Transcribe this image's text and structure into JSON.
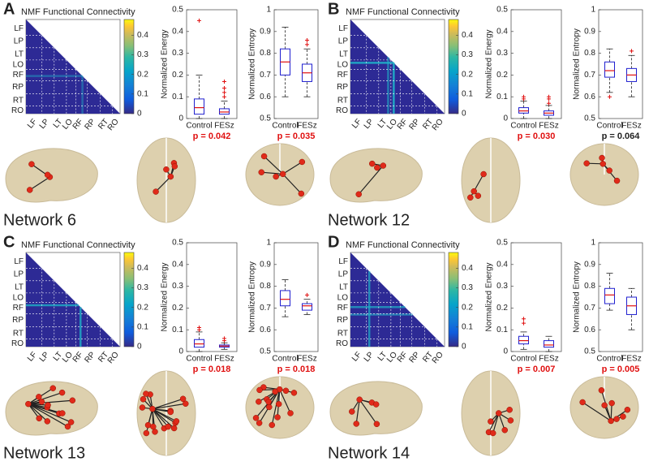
{
  "chart_data": [
    {
      "type": "panel",
      "letter": "A",
      "network": "Network 6",
      "heatmap": {
        "type": "heatmap",
        "title": "NMF Functional Connectivity",
        "regions": [
          "LF",
          "LP",
          "LT",
          "LO",
          "RF",
          "RP",
          "RT",
          "RO"
        ],
        "clim": [
          0,
          0.48
        ],
        "cticks": [
          0,
          0.1,
          0.2,
          0.3,
          0.4
        ]
      },
      "energy": {
        "type": "box",
        "ylabel": "Normalized Energy",
        "categories": [
          "Control",
          "FESz"
        ],
        "ylim": [
          0,
          0.5
        ],
        "yticks": [
          0,
          0.1,
          0.2,
          0.3,
          0.4,
          0.5
        ],
        "boxes": [
          {
            "min": 0,
            "q1": 0.02,
            "median": 0.05,
            "q3": 0.09,
            "max": 0.2,
            "outliers": [
              0.45
            ]
          },
          {
            "min": 0,
            "q1": 0.02,
            "median": 0.03,
            "q3": 0.045,
            "max": 0.08,
            "outliers": [
              0.1,
              0.12,
              0.14,
              0.17
            ]
          }
        ],
        "p_value": "p = 0.042",
        "p_color": "#e01010",
        "color": "#1f1fd0",
        "median_color": "#e01010"
      },
      "entropy": {
        "type": "box",
        "ylabel": "Normalized Entropy",
        "categories": [
          "Control",
          "FESz"
        ],
        "ylim": [
          0.5,
          1
        ],
        "yticks": [
          0.5,
          0.6,
          0.7,
          0.8,
          0.9,
          1
        ],
        "boxes": [
          {
            "min": 0.6,
            "q1": 0.7,
            "median": 0.76,
            "q3": 0.82,
            "max": 0.92,
            "outliers": []
          },
          {
            "min": 0.6,
            "q1": 0.67,
            "median": 0.71,
            "q3": 0.75,
            "max": 0.82,
            "outliers": [
              0.84,
              0.86
            ]
          }
        ],
        "p_value": "p = 0.035",
        "p_color": "#e01010",
        "color": "#1f1fd0",
        "median_color": "#e01010"
      }
    },
    {
      "type": "panel",
      "letter": "B",
      "network": "Network 12",
      "heatmap": {
        "type": "heatmap",
        "title": "NMF Functional Connectivity",
        "regions": [
          "LF",
          "LP",
          "LT",
          "LO",
          "RF",
          "RP",
          "RT",
          "RO"
        ],
        "clim": [
          0,
          0.48
        ],
        "cticks": [
          0,
          0.1,
          0.2,
          0.3,
          0.4
        ]
      },
      "energy": {
        "type": "box",
        "ylabel": "Normalized Energy",
        "categories": [
          "Control",
          "FESz"
        ],
        "ylim": [
          0,
          0.5
        ],
        "yticks": [
          0,
          0.1,
          0.2,
          0.3,
          0.4,
          0.5
        ],
        "boxes": [
          {
            "min": 0,
            "q1": 0.025,
            "median": 0.035,
            "q3": 0.05,
            "max": 0.08,
            "outliers": [
              0.09,
              0.1
            ]
          },
          {
            "min": 0,
            "q1": 0.015,
            "median": 0.025,
            "q3": 0.035,
            "max": 0.06,
            "outliers": [
              0.07,
              0.09,
              0.1
            ]
          }
        ],
        "p_value": "p = 0.030",
        "p_color": "#e01010",
        "color": "#1f1fd0",
        "median_color": "#e01010"
      },
      "entropy": {
        "type": "box",
        "ylabel": "Normalized Entropy",
        "categories": [
          "Control",
          "FESz"
        ],
        "ylim": [
          0.5,
          1
        ],
        "yticks": [
          0.5,
          0.6,
          0.7,
          0.8,
          0.9,
          1
        ],
        "boxes": [
          {
            "min": 0.62,
            "q1": 0.69,
            "median": 0.72,
            "q3": 0.76,
            "max": 0.82,
            "outliers": [
              0.6
            ]
          },
          {
            "min": 0.6,
            "q1": 0.67,
            "median": 0.7,
            "q3": 0.73,
            "max": 0.79,
            "outliers": [
              0.81
            ]
          }
        ],
        "p_value": "p = 0.064",
        "p_color": "#222222",
        "color": "#1f1fd0",
        "median_color": "#e01010"
      }
    },
    {
      "type": "panel",
      "letter": "C",
      "network": "Network 13",
      "heatmap": {
        "type": "heatmap",
        "title": "NMF Functional Connectivity",
        "regions": [
          "LF",
          "LP",
          "LT",
          "LO",
          "RF",
          "RP",
          "RT",
          "RO"
        ],
        "clim": [
          0,
          0.48
        ],
        "cticks": [
          0,
          0.1,
          0.2,
          0.3,
          0.4
        ]
      },
      "energy": {
        "type": "box",
        "ylabel": "Normalized Energy",
        "categories": [
          "Control",
          "FESz"
        ],
        "ylim": [
          0,
          0.5
        ],
        "yticks": [
          0,
          0.1,
          0.2,
          0.3,
          0.4,
          0.5
        ],
        "boxes": [
          {
            "min": 0,
            "q1": 0.02,
            "median": 0.035,
            "q3": 0.055,
            "max": 0.09,
            "outliers": [
              0.1,
              0.11
            ]
          },
          {
            "min": 0.01,
            "q1": 0.02,
            "median": 0.025,
            "q3": 0.03,
            "max": 0.04,
            "outliers": [
              0.05,
              0.06
            ]
          }
        ],
        "p_value": "p = 0.018",
        "p_color": "#e01010",
        "color": "#1f1fd0",
        "median_color": "#e01010"
      },
      "entropy": {
        "type": "box",
        "ylabel": "Normalized Entropy",
        "categories": [
          "Control",
          "FESz"
        ],
        "ylim": [
          0.5,
          1
        ],
        "yticks": [
          0.5,
          0.6,
          0.7,
          0.8,
          0.9,
          1
        ],
        "boxes": [
          {
            "min": 0.66,
            "q1": 0.71,
            "median": 0.74,
            "q3": 0.78,
            "max": 0.83,
            "outliers": []
          },
          {
            "min": 0.67,
            "q1": 0.69,
            "median": 0.71,
            "q3": 0.72,
            "max": 0.74,
            "outliers": [
              0.76
            ]
          }
        ],
        "p_value": "p = 0.018",
        "p_color": "#e01010",
        "color": "#1f1fd0",
        "median_color": "#e01010"
      }
    },
    {
      "type": "panel",
      "letter": "D",
      "network": "Network 14",
      "heatmap": {
        "type": "heatmap",
        "title": "NMF Functional Connectivity",
        "regions": [
          "LF",
          "LP",
          "LT",
          "LO",
          "RF",
          "RP",
          "RT",
          "RO"
        ],
        "clim": [
          0,
          0.48
        ],
        "cticks": [
          0,
          0.1,
          0.2,
          0.3,
          0.4
        ]
      },
      "energy": {
        "type": "box",
        "ylabel": "Normalized Energy",
        "categories": [
          "Control",
          "FESz"
        ],
        "ylim": [
          0,
          0.5
        ],
        "yticks": [
          0,
          0.1,
          0.2,
          0.3,
          0.4,
          0.5
        ],
        "boxes": [
          {
            "min": 0.01,
            "q1": 0.035,
            "median": 0.05,
            "q3": 0.07,
            "max": 0.09,
            "outliers": [
              0.13,
              0.15
            ]
          },
          {
            "min": 0,
            "q1": 0.02,
            "median": 0.03,
            "q3": 0.05,
            "max": 0.07,
            "outliers": []
          }
        ],
        "p_value": "p = 0.007",
        "p_color": "#e01010",
        "color": "#1f1fd0",
        "median_color": "#e01010"
      },
      "entropy": {
        "type": "box",
        "ylabel": "Normalized Entropy",
        "categories": [
          "Control",
          "FESz"
        ],
        "ylim": [
          0.5,
          1
        ],
        "yticks": [
          0.5,
          0.6,
          0.7,
          0.8,
          0.9,
          1
        ],
        "boxes": [
          {
            "min": 0.69,
            "q1": 0.72,
            "median": 0.76,
            "q3": 0.79,
            "max": 0.86,
            "outliers": []
          },
          {
            "min": 0.6,
            "q1": 0.67,
            "median": 0.71,
            "q3": 0.75,
            "max": 0.79,
            "outliers": []
          }
        ],
        "p_value": "p = 0.005",
        "p_color": "#e01010",
        "color": "#1f1fd0",
        "median_color": "#e01010"
      }
    }
  ]
}
